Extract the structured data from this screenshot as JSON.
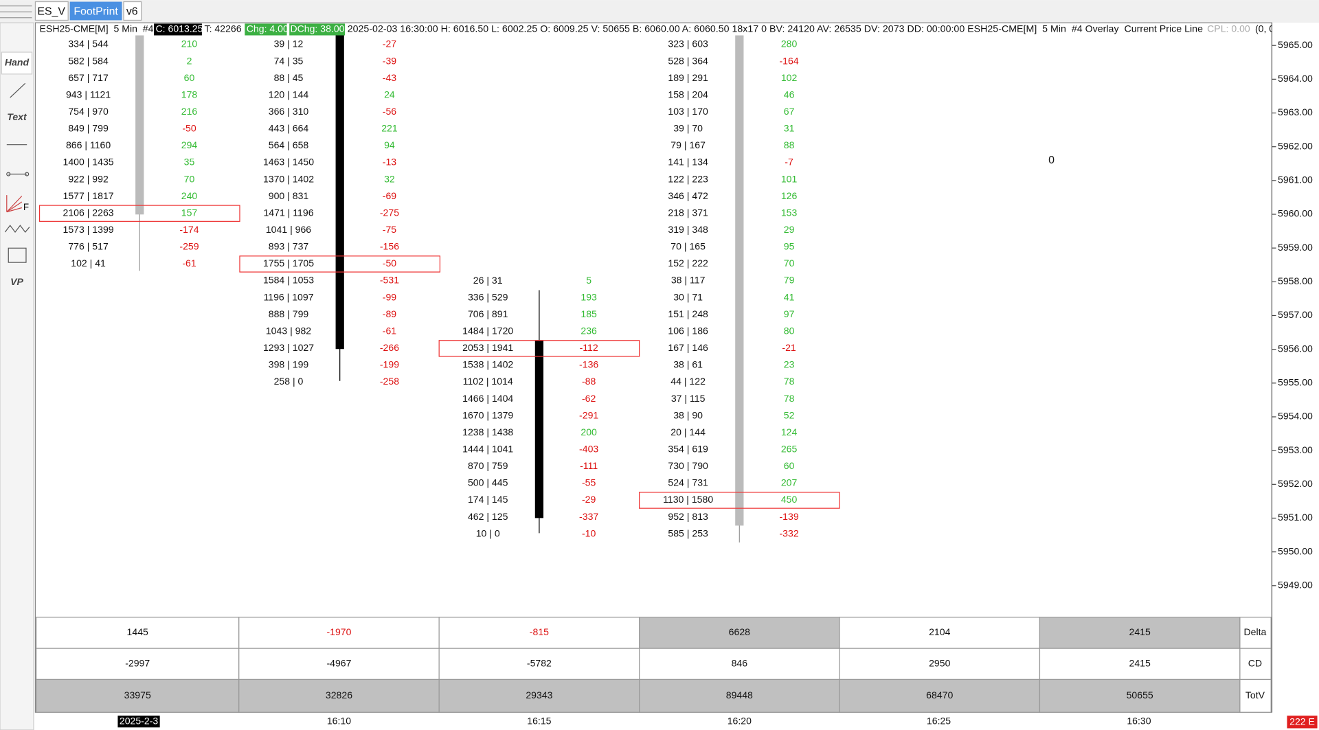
{
  "tabs": [
    "ES_V",
    "FootPrint",
    "v6"
  ],
  "header": {
    "symbol": "ESH25-CME[M]  5 Min  #4",
    "close": "C: 6013.25",
    "trades": "T: 42266",
    "chg": "Chg: 4.00",
    "dchg": "DChg: 38.00",
    "info": "2025-02-03 16:30:00 H: 6016.50 L: 6002.25 O: 6009.25 V: 50655 B: 6060.00 A: 6060.50 18x17 0 BV: 24120 AV: 26535 DV: 2073 DD: 00:00:00 ESH25-CME[M]  5 Min  #4 Overlay  Current Price Line",
    "cpl": "CPL: 0.00",
    "tail": "(0, 0"
  },
  "toolbar": {
    "hand": "Hand",
    "text": "Text",
    "fib": "F",
    "vp": "VP"
  },
  "marker": "0",
  "price_axis": [
    "5965.00",
    "5964.00",
    "5963.00",
    "5962.00",
    "5961.00",
    "5960.00",
    "5959.00",
    "5958.00",
    "5957.00",
    "5956.00",
    "5955.00",
    "5954.00",
    "5953.00",
    "5952.00",
    "5951.00",
    "5950.00",
    "5949.00"
  ],
  "footprint": [
    {
      "boxed_row": 10,
      "rows": [
        [
          "334 | 544",
          "210"
        ],
        [
          "582 | 584",
          "2"
        ],
        [
          "657 | 717",
          "60"
        ],
        [
          "943 | 1121",
          "178"
        ],
        [
          "754 | 970",
          "216"
        ],
        [
          "849 | 799",
          "-50"
        ],
        [
          "866 | 1160",
          "294"
        ],
        [
          "1400 | 1435",
          "35"
        ],
        [
          "922 | 992",
          "70"
        ],
        [
          "1577 | 1817",
          "240"
        ],
        [
          "2106 | 2263",
          "157"
        ],
        [
          "1573 | 1399",
          "-174"
        ],
        [
          "776 | 517",
          "-259"
        ],
        [
          "102 | 41",
          "-61"
        ]
      ]
    },
    {
      "boxed_row": 13,
      "rows": [
        [
          "39 | 12",
          "-27"
        ],
        [
          "74 | 35",
          "-39"
        ],
        [
          "88 | 45",
          "-43"
        ],
        [
          "120 | 144",
          "24"
        ],
        [
          "366 | 310",
          "-56"
        ],
        [
          "443 | 664",
          "221"
        ],
        [
          "564 | 658",
          "94"
        ],
        [
          "1463 | 1450",
          "-13"
        ],
        [
          "1370 | 1402",
          "32"
        ],
        [
          "900 | 831",
          "-69"
        ],
        [
          "1471 | 1196",
          "-275"
        ],
        [
          "1041 | 966",
          "-75"
        ],
        [
          "893 | 737",
          "-156"
        ],
        [
          "1755 | 1705",
          "-50"
        ],
        [
          "1584 | 1053",
          "-531"
        ],
        [
          "1196 | 1097",
          "-99"
        ],
        [
          "888 | 799",
          "-89"
        ],
        [
          "1043 | 982",
          "-61"
        ],
        [
          "1293 | 1027",
          "-266"
        ],
        [
          "398 | 199",
          "-199"
        ],
        [
          "258 | 0",
          "-258"
        ]
      ]
    },
    {
      "boxed_row": 4,
      "rows": [
        [
          "26 | 31",
          "5"
        ],
        [
          "336 | 529",
          "193"
        ],
        [
          "706 | 891",
          "185"
        ],
        [
          "1484 | 1720",
          "236"
        ],
        [
          "2053 | 1941",
          "-112"
        ],
        [
          "1538 | 1402",
          "-136"
        ],
        [
          "1102 | 1014",
          "-88"
        ],
        [
          "1466 | 1404",
          "-62"
        ],
        [
          "1670 | 1379",
          "-291"
        ],
        [
          "1238 | 1438",
          "200"
        ],
        [
          "1444 | 1041",
          "-403"
        ],
        [
          "870 | 759",
          "-111"
        ],
        [
          "500 | 445",
          "-55"
        ],
        [
          "174 | 145",
          "-29"
        ],
        [
          "462 | 125",
          "-337"
        ],
        [
          "10 | 0",
          "-10"
        ]
      ]
    },
    {
      "boxed_row": 27,
      "rows": [
        [
          "323 | 603",
          "280"
        ],
        [
          "528 | 364",
          "-164"
        ],
        [
          "189 | 291",
          "102"
        ],
        [
          "158 | 204",
          "46"
        ],
        [
          "103 | 170",
          "67"
        ],
        [
          "39 | 70",
          "31"
        ],
        [
          "79 | 167",
          "88"
        ],
        [
          "141 | 134",
          "-7"
        ],
        [
          "122 | 223",
          "101"
        ],
        [
          "346 | 472",
          "126"
        ],
        [
          "218 | 371",
          "153"
        ],
        [
          "319 | 348",
          "29"
        ],
        [
          "70 | 165",
          "95"
        ],
        [
          "152 | 222",
          "70"
        ],
        [
          "38 | 117",
          "79"
        ],
        [
          "30 | 71",
          "41"
        ],
        [
          "151 | 248",
          "97"
        ],
        [
          "106 | 186",
          "80"
        ],
        [
          "167 | 146",
          "-21"
        ],
        [
          "38 | 61",
          "23"
        ],
        [
          "44 | 122",
          "78"
        ],
        [
          "37 | 115",
          "78"
        ],
        [
          "38 | 90",
          "52"
        ],
        [
          "20 | 144",
          "124"
        ],
        [
          "354 | 619",
          "265"
        ],
        [
          "730 | 790",
          "60"
        ],
        [
          "524 | 731",
          "207"
        ],
        [
          "1130 | 1580",
          "450"
        ],
        [
          "952 | 813",
          "-139"
        ],
        [
          "585 | 253",
          "-332"
        ]
      ]
    }
  ],
  "table": {
    "rows": [
      {
        "label": "Delta",
        "cells": [
          "1445",
          "-1970",
          "-815",
          "6628",
          "2104",
          "2415"
        ],
        "shaded": [
          false,
          false,
          false,
          true,
          false,
          true
        ]
      },
      {
        "label": "CD",
        "cells": [
          "-2997",
          "-4967",
          "-5782",
          "846",
          "2950",
          "2415"
        ],
        "shaded": [
          false,
          false,
          false,
          false,
          false,
          false
        ]
      },
      {
        "label": "TotV",
        "cells": [
          "33975",
          "32826",
          "29343",
          "89448",
          "68470",
          "50655"
        ],
        "shaded": [
          true,
          true,
          true,
          true,
          true,
          true
        ]
      }
    ]
  },
  "time_axis": [
    "2025-2-3",
    "16:10",
    "16:15",
    "16:20",
    "16:25",
    "16:30"
  ],
  "status": "222 E"
}
